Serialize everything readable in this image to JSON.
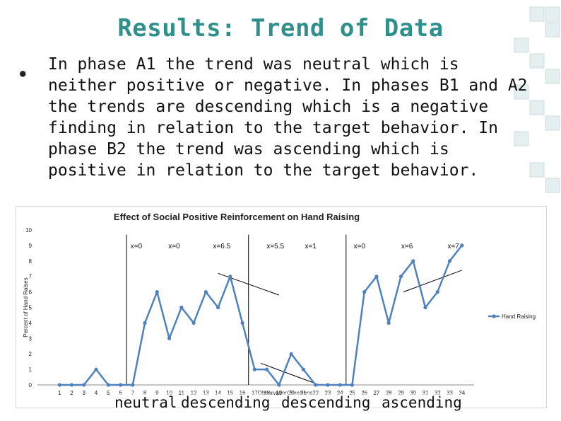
{
  "slide": {
    "title": "Results: Trend of Data",
    "bullet": "In phase A1 the trend was neutral which is neither positive or negative. In phases B1 and A2 the trends are descending which is a negative finding in relation to the target behavior. In phase B2 the trend was ascending which is positive in relation to the target behavior."
  },
  "phase_trends": [
    "neutral",
    "descending",
    "descending",
    "ascending"
  ],
  "accent_color": "#2f8f8a",
  "chart_data": {
    "type": "line",
    "title": "Effect of Social Positive Reinforcement on Hand Raising",
    "xlabel": "Observation Sessions",
    "ylabel": "Percent of Hand Raises",
    "ylim": [
      0,
      10
    ],
    "x": [
      1,
      2,
      3,
      4,
      5,
      6,
      7,
      8,
      9,
      10,
      11,
      12,
      13,
      14,
      15,
      16,
      17,
      18,
      19,
      20,
      21,
      22,
      23,
      24,
      25,
      26,
      27,
      28,
      29,
      30,
      31,
      32,
      33,
      34
    ],
    "series": [
      {
        "name": "Hand Raising",
        "color": "#4f81bd",
        "values": [
          0,
          0,
          0,
          1,
          0,
          0,
          0,
          4,
          6,
          3,
          5,
          4,
          6,
          5,
          7,
          4,
          1,
          1,
          0,
          2,
          1,
          0,
          0,
          0,
          0,
          6,
          7,
          4,
          7,
          8,
          5,
          6,
          8,
          9
        ]
      }
    ],
    "phase_lines_after_x": [
      6.5,
      16.5,
      24.5
    ],
    "annotations": [
      {
        "text": "x=0",
        "x": 7.3,
        "y": 9
      },
      {
        "text": "x=0",
        "x": 10.4,
        "y": 9
      },
      {
        "text": "x=6.5",
        "x": 14.3,
        "y": 9
      },
      {
        "text": "x=5.5",
        "x": 18.7,
        "y": 9
      },
      {
        "text": "x=1",
        "x": 21.6,
        "y": 9
      },
      {
        "text": "x=0",
        "x": 25.6,
        "y": 9
      },
      {
        "text": "x=6",
        "x": 29.5,
        "y": 9
      },
      {
        "text": "x=7",
        "x": 33.3,
        "y": 9
      }
    ],
    "trend_lines": [
      {
        "x1": 14.0,
        "y1": 7.2,
        "x2": 19.0,
        "y2": 5.8
      },
      {
        "x1": 17.5,
        "y1": 1.4,
        "x2": 22.3,
        "y2": 0.0
      },
      {
        "x1": 29.2,
        "y1": 6.0,
        "x2": 34.0,
        "y2": 7.4
      }
    ],
    "legend": "right"
  }
}
